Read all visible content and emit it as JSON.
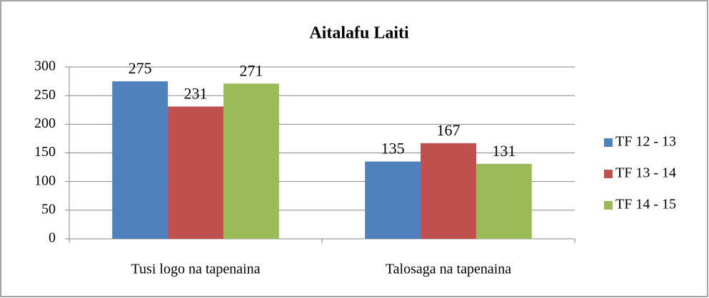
{
  "chart_data": {
    "type": "bar",
    "title": "Aitalafu Laiti",
    "categories": [
      "Tusi logo na tapenaina",
      "Talosaga na tapenaina"
    ],
    "series": [
      {
        "name": "TF 12 - 13",
        "color": "#4f81bd",
        "values": [
          275,
          135
        ]
      },
      {
        "name": "TF 13 - 14",
        "color": "#c0504d",
        "values": [
          231,
          167
        ]
      },
      {
        "name": "TF 14 - 15",
        "color": "#9bbb59",
        "values": [
          271,
          131
        ]
      }
    ],
    "ylim": [
      0,
      300
    ],
    "yticks": [
      0,
      50,
      100,
      150,
      200,
      250,
      300
    ],
    "grid": true,
    "legend": "right"
  }
}
